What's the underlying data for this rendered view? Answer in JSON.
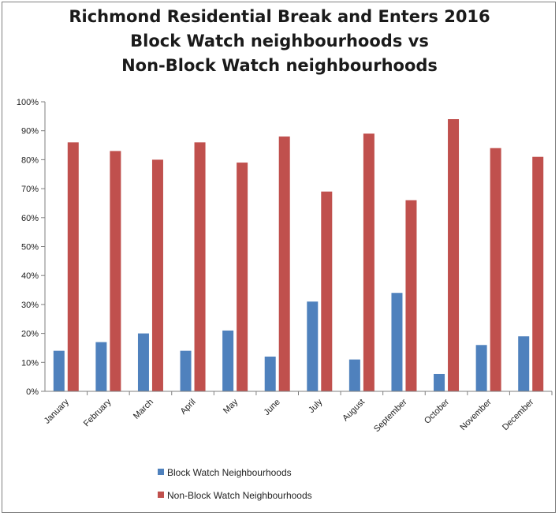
{
  "chart_data": {
    "type": "bar",
    "title_lines": [
      "Richmond Residential Break and Enters 2016",
      "Block Watch neighbourhoods vs",
      "Non-Block Watch neighbourhoods"
    ],
    "categories": [
      "January",
      "February",
      "March",
      "April",
      "May",
      "June",
      "July",
      "August",
      "September",
      "October",
      "November",
      "December"
    ],
    "series": [
      {
        "name": "Block Watch Neighbourhoods",
        "color": "#4f81bd",
        "values": [
          14,
          17,
          20,
          14,
          21,
          12,
          31,
          11,
          34,
          6,
          16,
          19
        ]
      },
      {
        "name": "Non-Block Watch Neighbourhoods",
        "color": "#c0504d",
        "values": [
          86,
          83,
          80,
          86,
          79,
          88,
          69,
          89,
          66,
          94,
          84,
          81
        ]
      }
    ],
    "ylim": [
      0,
      100
    ],
    "yticks": [
      "0%",
      "10%",
      "20%",
      "30%",
      "40%",
      "50%",
      "60%",
      "70%",
      "80%",
      "90%",
      "100%"
    ],
    "grid": false,
    "legend_position": "bottom"
  }
}
